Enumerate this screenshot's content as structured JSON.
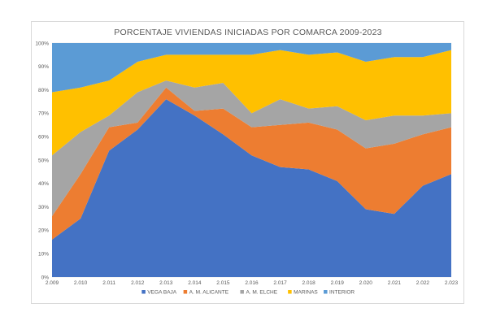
{
  "chart_data": {
    "type": "area",
    "stacked": "percent",
    "title": "PORCENTAJE VIVIENDAS INICIADAS POR COMARCA 2009-2023",
    "xlabel": "",
    "ylabel": "",
    "x": [
      "2.009",
      "2.010",
      "2.011",
      "2.012",
      "2.013",
      "2.014",
      "2.015",
      "2.016",
      "2.017",
      "2.018",
      "2.019",
      "2.020",
      "2.021",
      "2.022",
      "2.023"
    ],
    "yticks": [
      "0%",
      "10%",
      "20%",
      "30%",
      "40%",
      "50%",
      "60%",
      "70%",
      "80%",
      "90%",
      "100%"
    ],
    "ylim": [
      0,
      100
    ],
    "grid": true,
    "legend_position": "bottom",
    "series": [
      {
        "name": "VEGA BAJA",
        "color": "#4472C4",
        "values": [
          16,
          25,
          54,
          63,
          76,
          69,
          61,
          52,
          47,
          46,
          41,
          29,
          27,
          39,
          44
        ]
      },
      {
        "name": "A. M. ALICANTE",
        "color": "#ED7D31",
        "values": [
          10,
          19,
          10,
          3,
          5,
          2,
          11,
          12,
          18,
          20,
          22,
          26,
          30,
          22,
          20
        ]
      },
      {
        "name": "A. M. ELCHE",
        "color": "#A5A5A5",
        "values": [
          26,
          18,
          5,
          13,
          3,
          10,
          11,
          6,
          11,
          6,
          10,
          12,
          12,
          8,
          6
        ]
      },
      {
        "name": "MARINAS",
        "color": "#FFC000",
        "values": [
          27,
          19,
          15,
          13,
          11,
          14,
          12,
          25,
          21,
          23,
          23,
          25,
          25,
          25,
          27
        ]
      },
      {
        "name": "INTERIOR",
        "color": "#5B9BD5",
        "values": [
          21,
          19,
          16,
          8,
          5,
          5,
          5,
          5,
          3,
          5,
          4,
          8,
          6,
          6,
          3
        ]
      }
    ]
  }
}
